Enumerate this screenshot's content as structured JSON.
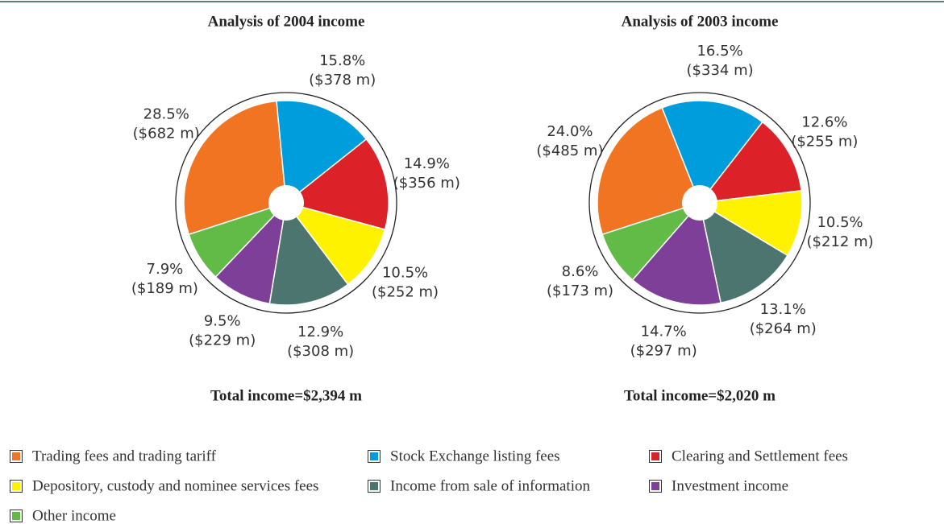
{
  "chart_data": [
    {
      "type": "pie",
      "title": "Analysis of 2004 income",
      "categories": [
        "Trading fees and trading tariff",
        "Stock Exchange listing fees",
        "Clearing and Settlement fees",
        "Depository, custody and nominee services fees",
        "Income from sale of information",
        "Investment income",
        "Other income"
      ],
      "colors": [
        "#f07422",
        "#009ddc",
        "#dc2128",
        "#fff200",
        "#4d7570",
        "#7d3f98",
        "#62bb46"
      ],
      "values": [
        28.5,
        15.8,
        14.9,
        10.5,
        12.9,
        9.5,
        7.9
      ],
      "value_labels": [
        "28.5%",
        "15.8%",
        "14.9%",
        "10.5%",
        "12.9%",
        "9.5%",
        "7.9%"
      ],
      "amounts": [
        682,
        378,
        356,
        252,
        308,
        229,
        189
      ],
      "amount_labels": [
        "($682 m)",
        "($378 m)",
        "($356 m)",
        "($252 m)",
        "($308 m)",
        "($229 m)",
        "($189 m)"
      ],
      "total": 2394,
      "total_label": "Total income=$2,394 m"
    },
    {
      "type": "pie",
      "title": "Analysis of 2003 income",
      "categories": [
        "Trading fees and trading tariff",
        "Stock Exchange listing fees",
        "Clearing and Settlement fees",
        "Depository, custody and nominee services fees",
        "Income from sale of information",
        "Investment income",
        "Other income"
      ],
      "colors": [
        "#f07422",
        "#009ddc",
        "#dc2128",
        "#fff200",
        "#4d7570",
        "#7d3f98",
        "#62bb46"
      ],
      "values": [
        24.0,
        16.5,
        12.6,
        10.5,
        13.1,
        14.7,
        8.6
      ],
      "value_labels": [
        "24.0%",
        "16.5%",
        "12.6%",
        "10.5%",
        "13.1%",
        "14.7%",
        "8.6%"
      ],
      "amounts": [
        485,
        334,
        255,
        212,
        264,
        297,
        173
      ],
      "amount_labels": [
        "($485 m)",
        "($334 m)",
        "($255 m)",
        "($212 m)",
        "($264 m)",
        "($297 m)",
        "($173 m)"
      ],
      "total": 2020,
      "total_label": "Total income=$2,020 m"
    }
  ]
}
